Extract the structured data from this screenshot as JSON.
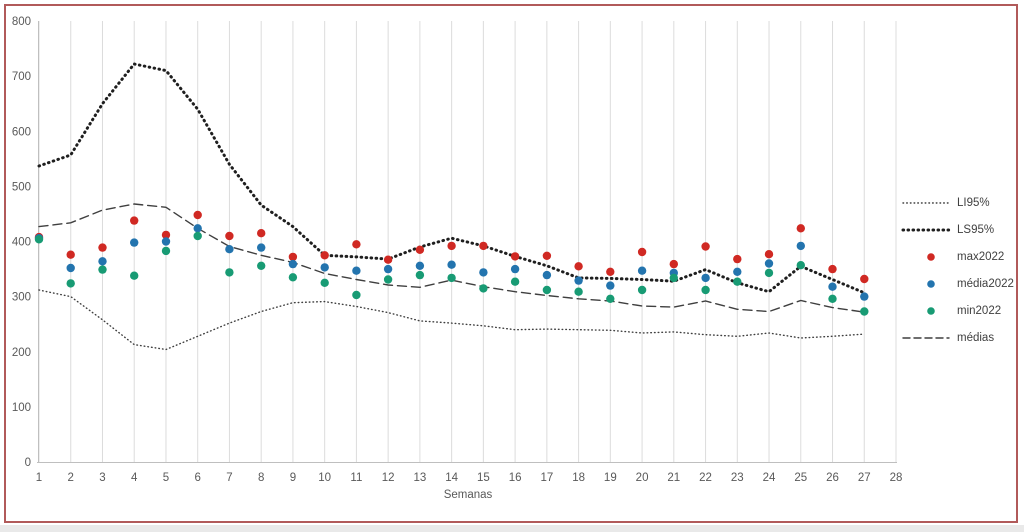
{
  "chart_data": {
    "type": "scatter",
    "title": "",
    "xlabel": "Semanas",
    "ylabel": "",
    "xlim": [
      1,
      28
    ],
    "ylim": [
      0,
      800
    ],
    "x_ticks": [
      1,
      2,
      3,
      4,
      5,
      6,
      7,
      8,
      9,
      10,
      11,
      12,
      13,
      14,
      15,
      16,
      17,
      18,
      19,
      20,
      21,
      22,
      23,
      24,
      25,
      26,
      27,
      28
    ],
    "y_ticks": [
      0,
      100,
      200,
      300,
      400,
      500,
      600,
      700,
      800
    ],
    "grid": "vertical-only",
    "legend_position": "right",
    "weeks": [
      1,
      2,
      3,
      4,
      5,
      6,
      7,
      8,
      9,
      10,
      11,
      12,
      13,
      14,
      15,
      16,
      17,
      18,
      19,
      20,
      21,
      22,
      23,
      24,
      25,
      26,
      27
    ],
    "series": [
      {
        "name": "LI95%",
        "slug": "li95",
        "kind": "line",
        "style": "dotted-fine",
        "color": "#3f3f3f",
        "values": [
          312,
          300,
          258,
          213,
          204,
          228,
          252,
          273,
          289,
          291,
          282,
          271,
          256,
          252,
          247,
          240,
          241,
          240,
          239,
          234,
          236,
          231,
          228,
          234,
          225,
          228,
          232
        ]
      },
      {
        "name": "LS95%",
        "slug": "ls95",
        "kind": "line",
        "style": "dotted-bold",
        "color": "#1f1f1f",
        "values": [
          537,
          557,
          650,
          722,
          710,
          640,
          540,
          466,
          427,
          375,
          372,
          368,
          390,
          406,
          392,
          373,
          356,
          334,
          333,
          331,
          328,
          349,
          325,
          309,
          355,
          331,
          307
        ]
      },
      {
        "name": "max2022",
        "slug": "max2022",
        "kind": "scatter",
        "style": "dot",
        "color": "#d02923",
        "values": [
          408,
          376,
          389,
          438,
          412,
          448,
          410,
          415,
          372,
          375,
          395,
          367,
          385,
          392,
          392,
          373,
          374,
          355,
          345,
          381,
          359,
          391,
          368,
          377,
          424,
          350,
          332
        ]
      },
      {
        "name": "média2022",
        "slug": "media2022",
        "kind": "scatter",
        "style": "dot",
        "color": "#2374ae",
        "values": [
          406,
          352,
          364,
          398,
          400,
          424,
          386,
          389,
          359,
          353,
          347,
          350,
          356,
          358,
          344,
          350,
          339,
          329,
          320,
          347,
          343,
          334,
          345,
          360,
          392,
          318,
          300
        ]
      },
      {
        "name": "min2022",
        "slug": "min2022",
        "kind": "scatter",
        "style": "dot",
        "color": "#189b74",
        "values": [
          404,
          324,
          349,
          338,
          383,
          410,
          344,
          356,
          335,
          325,
          303,
          331,
          339,
          334,
          315,
          327,
          312,
          309,
          296,
          312,
          334,
          312,
          327,
          343,
          357,
          296,
          273
        ]
      },
      {
        "name": "médias",
        "slug": "medias",
        "kind": "line",
        "style": "dashed",
        "color": "#3f3f3f",
        "values": [
          427,
          434,
          457,
          468,
          462,
          424,
          391,
          375,
          362,
          342,
          331,
          321,
          317,
          330,
          318,
          309,
          302,
          296,
          292,
          283,
          281,
          292,
          277,
          273,
          293,
          280,
          272
        ]
      }
    ]
  },
  "frame_color": "#b15a5a",
  "grid_color": "#dcdcdc",
  "axis_color": "#bfbfbf",
  "tick_color": "#595959"
}
